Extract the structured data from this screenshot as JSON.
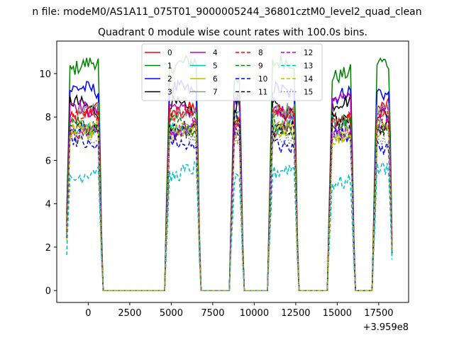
{
  "figure": {
    "suptitle": "n file: modeM0/AS1A11_075T01_9000005244_36801cztM0_level2_quad_clean"
  },
  "chart_data": {
    "type": "line",
    "title": "Quadrant 0 module wise count rates with 100.0s bins.",
    "xlabel": "",
    "ylabel": "",
    "x_offset_label": "+3.959e8",
    "xlim": [
      -1900,
      19300
    ],
    "ylim": [
      -0.55,
      11.5
    ],
    "xticks": [
      0,
      2500,
      5000,
      7500,
      10000,
      12500,
      15000,
      17500
    ],
    "yticks": [
      0,
      2,
      4,
      6,
      8,
      10
    ],
    "legend": {
      "placement": "top-center",
      "ncol": 4
    },
    "grid": false,
    "segments": [
      {
        "start": -1300,
        "end": 800
      },
      {
        "start": 4700,
        "end": 6700
      },
      {
        "start": 8600,
        "end": 9300
      },
      {
        "start": 10900,
        "end": 12600
      },
      {
        "start": 14500,
        "end": 16000
      },
      {
        "start": 17200,
        "end": 18300
      }
    ],
    "series": [
      {
        "name": "0",
        "color": "#ff0000",
        "dash": "solid",
        "level": 8.2
      },
      {
        "name": "1",
        "color": "#008000",
        "dash": "solid",
        "level": 10.2
      },
      {
        "name": "2",
        "color": "#0000ff",
        "dash": "solid",
        "level": 9.0
      },
      {
        "name": "3",
        "color": "#000000",
        "dash": "solid",
        "level": 8.4
      },
      {
        "name": "4",
        "color": "#bf00bf",
        "dash": "solid",
        "level": 8.6
      },
      {
        "name": "5",
        "color": "#00bfbf",
        "dash": "solid",
        "level": 7.8
      },
      {
        "name": "6",
        "color": "#bfbf00",
        "dash": "solid",
        "level": 7.3
      },
      {
        "name": "7",
        "color": "#7f9f7f",
        "dash": "solid",
        "level": 8.0
      },
      {
        "name": "8",
        "color": "#ff0000",
        "dash": "dashed",
        "level": 7.9
      },
      {
        "name": "9",
        "color": "#008000",
        "dash": "dashed",
        "level": 7.5
      },
      {
        "name": "10",
        "color": "#0000ff",
        "dash": "dashed",
        "level": 6.9
      },
      {
        "name": "11",
        "color": "#000000",
        "dash": "dashed",
        "level": 7.7
      },
      {
        "name": "12",
        "color": "#bf00bf",
        "dash": "dashed",
        "level": 7.6
      },
      {
        "name": "13",
        "color": "#00bfbf",
        "dash": "dashed",
        "level": 5.3
      },
      {
        "name": "14",
        "color": "#bfbf00",
        "dash": "dashed",
        "level": 7.2
      },
      {
        "name": "15",
        "color": "#7f7f7f",
        "dash": "dotted",
        "level": 7.0
      }
    ]
  }
}
